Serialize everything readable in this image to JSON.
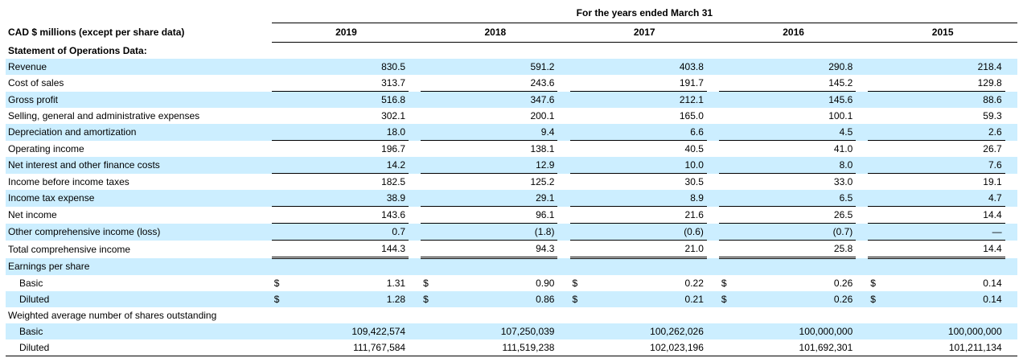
{
  "header": {
    "period_title": "For the years ended March 31",
    "row_label_header": "CAD $ millions (except per share data)",
    "columns": [
      "2019",
      "2018",
      "2017",
      "2016",
      "2015"
    ]
  },
  "currency_symbol": "$",
  "styles": {
    "highlight_color": "#cceeff",
    "text_color": "#000000"
  },
  "rows": [
    {
      "label": "Statement of Operations Data:",
      "section": true,
      "bold": true,
      "shaded": false,
      "indent": false,
      "dollar": false,
      "underline": "none",
      "values": null
    },
    {
      "label": "Revenue",
      "section": false,
      "bold": false,
      "shaded": true,
      "indent": false,
      "dollar": false,
      "underline": "none",
      "values": [
        "830.5",
        "591.2",
        "403.8",
        "290.8",
        "218.4"
      ]
    },
    {
      "label": "Cost of sales",
      "section": false,
      "bold": false,
      "shaded": false,
      "indent": false,
      "dollar": false,
      "underline": "single",
      "values": [
        "313.7",
        "243.6",
        "191.7",
        "145.2",
        "129.8"
      ]
    },
    {
      "label": "Gross profit",
      "section": false,
      "bold": false,
      "shaded": true,
      "indent": false,
      "dollar": false,
      "underline": "none",
      "values": [
        "516.8",
        "347.6",
        "212.1",
        "145.6",
        "88.6"
      ]
    },
    {
      "label": "Selling, general and administrative expenses",
      "section": false,
      "bold": false,
      "shaded": false,
      "indent": false,
      "dollar": false,
      "underline": "none",
      "values": [
        "302.1",
        "200.1",
        "165.0",
        "100.1",
        "59.3"
      ]
    },
    {
      "label": "Depreciation and amortization",
      "section": false,
      "bold": false,
      "shaded": true,
      "indent": false,
      "dollar": false,
      "underline": "single",
      "values": [
        "18.0",
        "9.4",
        "6.6",
        "4.5",
        "2.6"
      ]
    },
    {
      "label": "Operating income",
      "section": false,
      "bold": false,
      "shaded": false,
      "indent": false,
      "dollar": false,
      "underline": "none",
      "values": [
        "196.7",
        "138.1",
        "40.5",
        "41.0",
        "26.7"
      ]
    },
    {
      "label": "Net interest and other finance costs",
      "section": false,
      "bold": false,
      "shaded": true,
      "indent": false,
      "dollar": false,
      "underline": "single",
      "values": [
        "14.2",
        "12.9",
        "10.0",
        "8.0",
        "7.6"
      ]
    },
    {
      "label": "Income before income taxes",
      "section": false,
      "bold": false,
      "shaded": false,
      "indent": false,
      "dollar": false,
      "underline": "none",
      "values": [
        "182.5",
        "125.2",
        "30.5",
        "33.0",
        "19.1"
      ]
    },
    {
      "label": "Income tax expense",
      "section": false,
      "bold": false,
      "shaded": true,
      "indent": false,
      "dollar": false,
      "underline": "single",
      "values": [
        "38.9",
        "29.1",
        "8.9",
        "6.5",
        "4.7"
      ]
    },
    {
      "label": "Net income",
      "section": false,
      "bold": false,
      "shaded": false,
      "indent": false,
      "dollar": false,
      "underline": "single",
      "values": [
        "143.6",
        "96.1",
        "21.6",
        "26.5",
        "14.4"
      ]
    },
    {
      "label": "Other comprehensive income (loss)",
      "section": false,
      "bold": false,
      "shaded": true,
      "indent": false,
      "dollar": false,
      "underline": "single",
      "values": [
        "0.7",
        "(1.8)",
        "(0.6)",
        "(0.7)",
        "—"
      ]
    },
    {
      "label": "Total comprehensive income",
      "section": false,
      "bold": false,
      "shaded": false,
      "indent": false,
      "dollar": false,
      "underline": "double",
      "values": [
        "144.3",
        "94.3",
        "21.0",
        "25.8",
        "14.4"
      ]
    },
    {
      "label": "Earnings per share",
      "section": true,
      "bold": false,
      "shaded": true,
      "indent": false,
      "dollar": false,
      "underline": "none",
      "values": null
    },
    {
      "label": "Basic",
      "section": false,
      "bold": false,
      "shaded": false,
      "indent": true,
      "dollar": true,
      "underline": "none",
      "values": [
        "1.31",
        "0.90",
        "0.22",
        "0.26",
        "0.14"
      ]
    },
    {
      "label": "Diluted",
      "section": false,
      "bold": false,
      "shaded": true,
      "indent": true,
      "dollar": true,
      "underline": "none",
      "values": [
        "1.28",
        "0.86",
        "0.21",
        "0.26",
        "0.14"
      ]
    },
    {
      "label": "Weighted average number of shares outstanding",
      "section": true,
      "bold": false,
      "shaded": false,
      "indent": false,
      "dollar": false,
      "underline": "none",
      "values": null
    },
    {
      "label": "Basic",
      "section": false,
      "bold": false,
      "shaded": true,
      "indent": true,
      "dollar": false,
      "underline": "none",
      "values": [
        "109,422,574",
        "107,250,039",
        "100,262,026",
        "100,000,000",
        "100,000,000"
      ]
    },
    {
      "label": "Diluted",
      "section": false,
      "bold": false,
      "shaded": false,
      "indent": true,
      "dollar": false,
      "underline": "none",
      "values": [
        "111,767,584",
        "111,519,238",
        "102,023,196",
        "101,692,301",
        "101,211,134"
      ]
    }
  ]
}
